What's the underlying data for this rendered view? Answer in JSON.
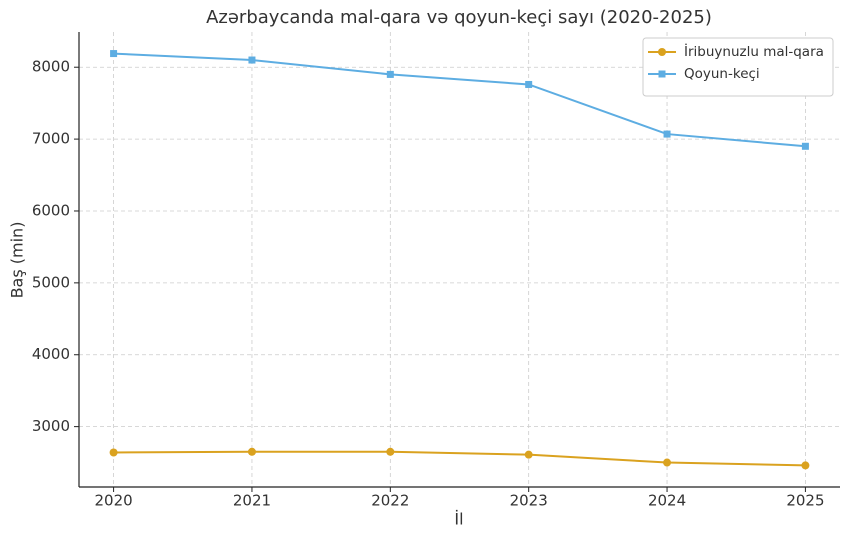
{
  "chart_data": {
    "type": "line",
    "title": "Azərbaycanda mal-qara və qoyun-keçi sayı (2020-2025)",
    "x_label": "İl",
    "y_label": "Baş (min)",
    "x": [
      2020,
      2021,
      2022,
      2023,
      2024,
      2025
    ],
    "series": [
      {
        "name": "İribuynuzlu mal-qara",
        "color": "#DAA21F",
        "marker": "circle",
        "values": [
          2640,
          2650,
          2650,
          2610,
          2500,
          2460
        ]
      },
      {
        "name": "Qoyun-keçi",
        "color": "#5DADE2",
        "marker": "square",
        "values": [
          8190,
          8100,
          7900,
          7760,
          7070,
          6900
        ]
      }
    ],
    "xlim": [
      2019.75,
      2025.25
    ],
    "xticks": [
      2020,
      2021,
      2022,
      2023,
      2024,
      2025
    ],
    "ylim": [
      2160,
      8490
    ],
    "yticks": [
      3000,
      4000,
      5000,
      6000,
      7000,
      8000
    ],
    "grid": true,
    "legend": "upper right"
  }
}
